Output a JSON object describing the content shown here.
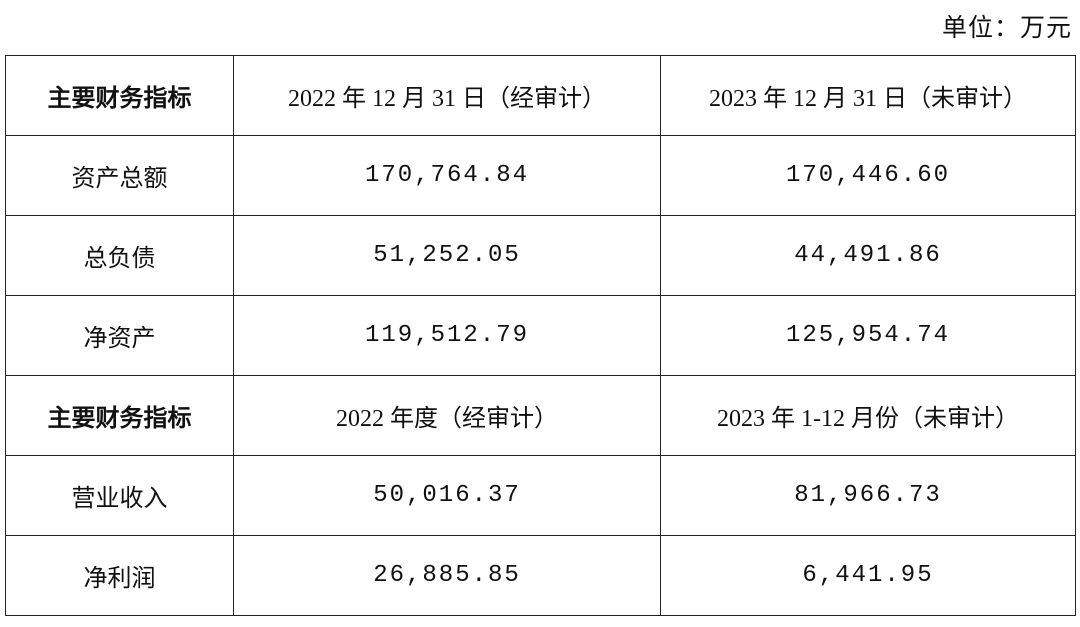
{
  "unit": "单位：万元",
  "table": {
    "rows": [
      [
        "主要财务指标",
        "2022 年 12 月 31 日（经审计）",
        "2023 年 12 月 31 日（未审计）"
      ],
      [
        "资产总额",
        "170,764.84",
        "170,446.60"
      ],
      [
        "总负债",
        "51,252.05",
        "44,491.86"
      ],
      [
        "净资产",
        "119,512.79",
        "125,954.74"
      ],
      [
        "主要财务指标",
        "2022 年度（经审计）",
        "2023 年 1-12 月份（未审计）"
      ],
      [
        "营业收入",
        "50,016.37",
        "81,966.73"
      ],
      [
        "净利润",
        "26,885.85",
        "6,441.95"
      ]
    ]
  }
}
